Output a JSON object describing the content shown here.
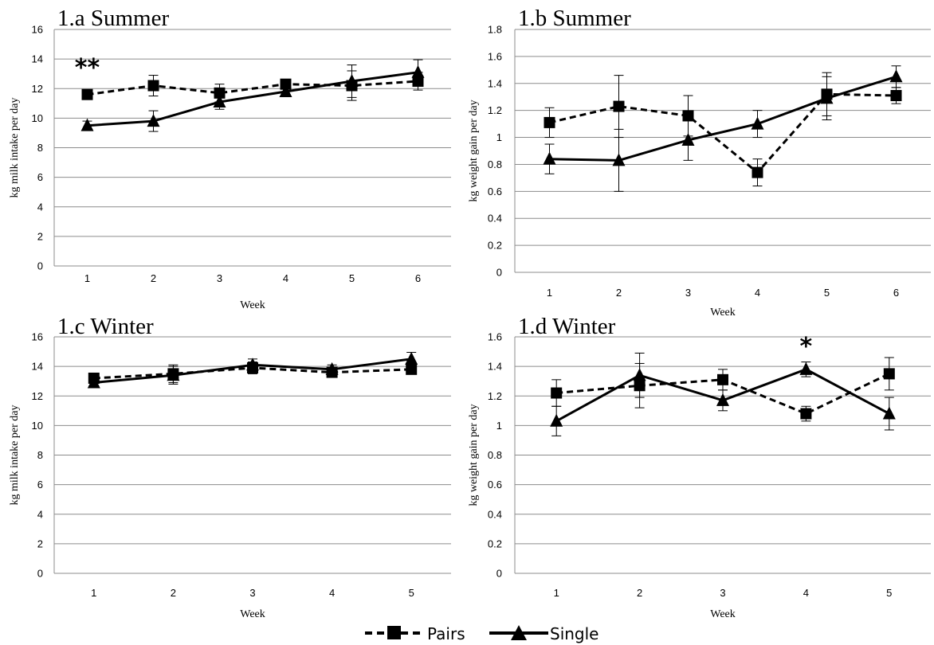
{
  "chart_data": [
    {
      "type": "line",
      "title": "1.a Summer",
      "xlabel": "Week",
      "ylabel": "kg milk intake per day",
      "categories": [
        "1",
        "2",
        "3",
        "4",
        "5",
        "6"
      ],
      "ylim": [
        0,
        16
      ],
      "yticks": [
        "0",
        "2",
        "4",
        "6",
        "8",
        "10",
        "12",
        "14",
        "16"
      ],
      "grid": true,
      "annotation": {
        "text": "**",
        "category_index": 0
      },
      "series": [
        {
          "name": "Pairs",
          "style": "dashed",
          "marker": "square",
          "values": [
            11.6,
            12.2,
            11.7,
            12.3,
            12.2,
            12.5
          ],
          "errors": [
            0.15,
            0.7,
            0.6,
            0.3,
            1.0,
            0.6
          ]
        },
        {
          "name": "Single",
          "style": "solid",
          "marker": "triangle",
          "values": [
            9.5,
            9.8,
            11.1,
            11.8,
            12.5,
            13.1
          ],
          "errors": [
            0.3,
            0.7,
            0.5,
            0.25,
            1.1,
            0.85
          ]
        }
      ]
    },
    {
      "type": "line",
      "title": "1.b Summer",
      "xlabel": "Week",
      "ylabel": "kg weight gain per day",
      "categories": [
        "1",
        "2",
        "3",
        "4",
        "5",
        "6"
      ],
      "ylim": [
        0,
        1.8
      ],
      "yticks": [
        "0",
        "0.2",
        "0.4",
        "0.6",
        "0.8",
        "1",
        "1.2",
        "1.4",
        "1.6",
        "1.8"
      ],
      "grid": true,
      "series": [
        {
          "name": "Pairs",
          "style": "dashed",
          "marker": "square",
          "values": [
            1.11,
            1.23,
            1.16,
            0.74,
            1.32,
            1.31
          ],
          "errors": [
            0.11,
            0.23,
            0.15,
            0.1,
            0.16,
            0.06
          ]
        },
        {
          "name": "Single",
          "style": "solid",
          "marker": "triangle",
          "values": [
            0.84,
            0.83,
            0.98,
            1.1,
            1.29,
            1.45
          ],
          "errors": [
            0.11,
            0.23,
            0.15,
            0.1,
            0.16,
            0.08
          ]
        }
      ]
    },
    {
      "type": "line",
      "title": "1.c Winter",
      "xlabel": "Week",
      "ylabel": "kg milk intake per day",
      "categories": [
        "1",
        "2",
        "3",
        "4",
        "5"
      ],
      "ylim": [
        0,
        16
      ],
      "yticks": [
        "0",
        "2",
        "4",
        "6",
        "8",
        "10",
        "12",
        "14",
        "16"
      ],
      "grid": true,
      "series": [
        {
          "name": "Pairs",
          "style": "dashed",
          "marker": "square",
          "values": [
            13.2,
            13.5,
            13.9,
            13.6,
            13.8
          ],
          "errors": [
            0.2,
            0.6,
            0.4,
            0.3,
            0.2
          ]
        },
        {
          "name": "Single",
          "style": "solid",
          "marker": "triangle",
          "values": [
            12.9,
            13.4,
            14.1,
            13.8,
            14.5
          ],
          "errors": [
            0.2,
            0.6,
            0.4,
            0.3,
            0.45
          ]
        }
      ]
    },
    {
      "type": "line",
      "title": "1.d Winter",
      "xlabel": "Week",
      "ylabel": "kg weight gain per day",
      "categories": [
        "1",
        "2",
        "3",
        "4",
        "5"
      ],
      "ylim": [
        0,
        1.6
      ],
      "yticks": [
        "0",
        "0.2",
        "0.4",
        "0.6",
        "0.8",
        "1",
        "1.2",
        "1.4",
        "1.6"
      ],
      "grid": true,
      "annotation": {
        "text": "*",
        "category_index": 3
      },
      "series": [
        {
          "name": "Pairs",
          "style": "dashed",
          "marker": "square",
          "values": [
            1.22,
            1.27,
            1.31,
            1.08,
            1.35
          ],
          "errors": [
            0.09,
            0.15,
            0.07,
            0.05,
            0.11
          ]
        },
        {
          "name": "Single",
          "style": "solid",
          "marker": "triangle",
          "values": [
            1.03,
            1.34,
            1.17,
            1.38,
            1.08
          ],
          "errors": [
            0.1,
            0.15,
            0.07,
            0.05,
            0.11
          ]
        }
      ]
    }
  ],
  "legend": {
    "position": "bottom-center",
    "items": [
      {
        "label": "Pairs",
        "style": "dashed",
        "marker": "square"
      },
      {
        "label": "Single",
        "style": "solid",
        "marker": "triangle"
      }
    ]
  }
}
